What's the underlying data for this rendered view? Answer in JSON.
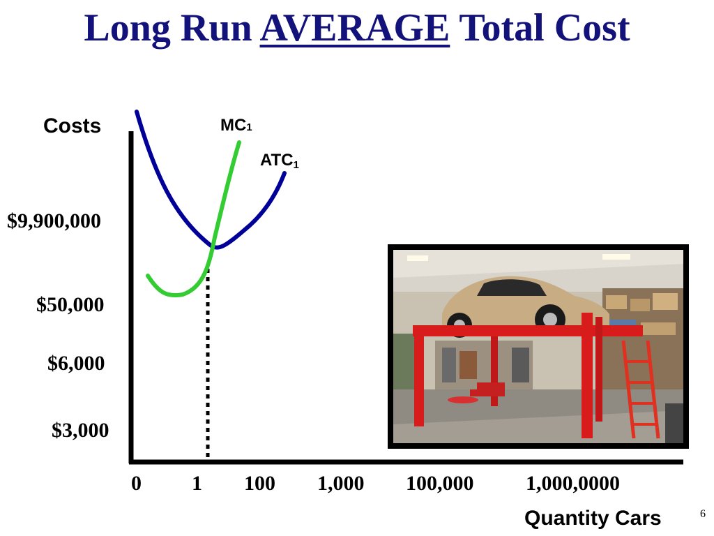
{
  "slide": {
    "title_prefix": "Long Run ",
    "title_emphasis": "AVERAGE",
    "title_suffix": " Total Cost",
    "page_number": "6"
  },
  "chart_data": {
    "type": "line",
    "ylabel": "Costs",
    "xlabel": "Quantity Cars",
    "x_ticks": [
      "0",
      "1",
      "100",
      "1,000",
      "100,000",
      "1,000,0000"
    ],
    "y_ticks": [
      "$9,900,000",
      "$50,000",
      "$6,000",
      "$3,000"
    ],
    "series": [
      {
        "name": "MC",
        "name_subscript": "1",
        "color": "#33cc33",
        "shape": "rising swoosh from low point, crossing ATC at its minimum"
      },
      {
        "name": "ATC",
        "name_subscript": "1",
        "color": "#000099",
        "shape": "U-shaped, minimum near quantity 1"
      }
    ],
    "annotation": "dotted vertical line from ATC minimum down to the quantity axis near 1",
    "grid": false,
    "legend": "none (curves labelled directly)"
  },
  "image": {
    "icon": "garage-photo-icon",
    "description_semantic": "car-on-lift-garage"
  }
}
